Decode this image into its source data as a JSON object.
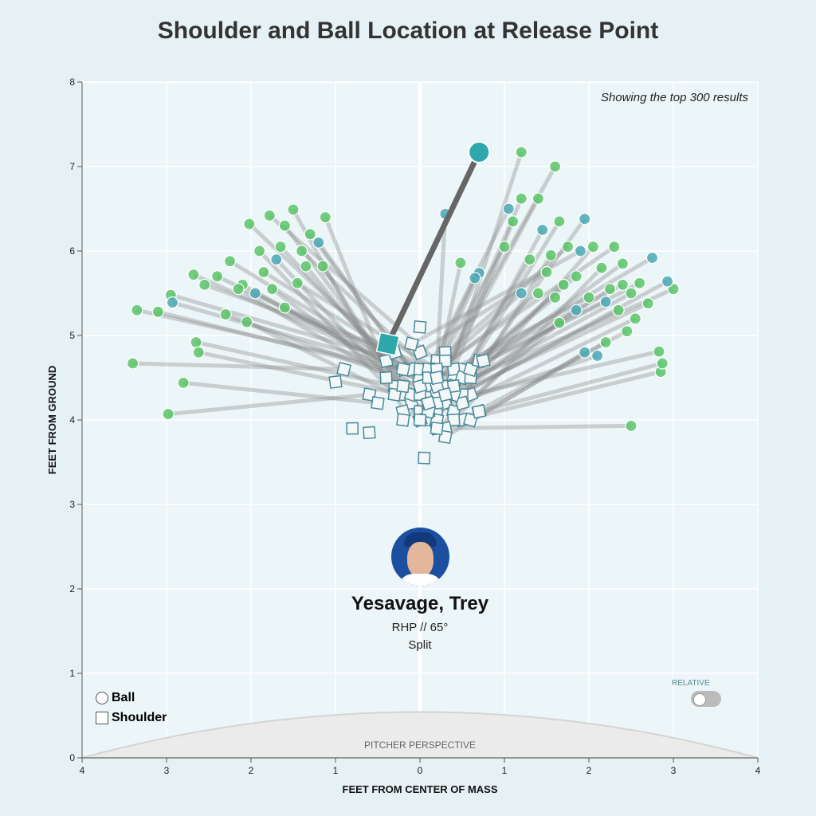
{
  "title": "Shoulder and Ball Location at Release Point",
  "note": "Showing the top 300 results",
  "player": {
    "name": "Yesavage, Trey",
    "info": "RHP // 65°",
    "pitch": "Split"
  },
  "legend": {
    "ball": "Ball",
    "shoulder": "Shoulder"
  },
  "toggle": {
    "label": "RELATIVE",
    "on": false
  },
  "perspective_label": "PITCHER PERSPECTIVE",
  "colors": {
    "ball_green": "#5cc46a",
    "ball_teal": "#4aa8b4",
    "highlight": "#2fa8ab",
    "shoulder_stroke": "#4a8a98",
    "line": "#888888"
  },
  "chart_data": {
    "type": "scatter",
    "xlabel": "FEET FROM CENTER OF MASS",
    "ylabel": "FEET FROM GROUND",
    "xlim": [
      -4,
      4
    ],
    "ylim": [
      0,
      8
    ],
    "xticks": [
      -4,
      -3,
      -2,
      -1,
      0,
      1,
      2,
      3,
      4
    ],
    "xticklabels": [
      "4",
      "3",
      "2",
      "1",
      "0",
      "1",
      "2",
      "3",
      "4"
    ],
    "yticks": [
      0,
      1,
      2,
      3,
      4,
      5,
      6,
      7,
      8
    ],
    "grid": true,
    "highlight": {
      "ball": [
        0.7,
        7.17
      ],
      "shoulder": [
        -0.38,
        4.9
      ]
    },
    "pairs_fields": [
      "ball_x",
      "ball_y",
      "shoulder_x",
      "shoulder_y",
      "group"
    ],
    "pairs": [
      [
        -3.35,
        5.3,
        -0.2,
        4.6,
        "g"
      ],
      [
        -3.1,
        5.28,
        0.0,
        4.5,
        "g"
      ],
      [
        -3.4,
        4.67,
        -0.9,
        4.6,
        "g"
      ],
      [
        -2.98,
        4.07,
        -0.6,
        4.3,
        "g"
      ],
      [
        -2.8,
        4.44,
        -0.5,
        4.2,
        "g"
      ],
      [
        -2.65,
        4.92,
        -0.3,
        4.4,
        "g"
      ],
      [
        -2.62,
        4.8,
        -0.2,
        4.3,
        "g"
      ],
      [
        -2.95,
        5.48,
        0.1,
        4.6,
        "g"
      ],
      [
        -2.93,
        5.39,
        0.2,
        4.5,
        "t"
      ],
      [
        -2.3,
        5.25,
        0.0,
        4.4,
        "g"
      ],
      [
        -2.05,
        5.16,
        -0.1,
        4.2,
        "g"
      ],
      [
        -2.68,
        5.72,
        -0.4,
        4.7,
        "g"
      ],
      [
        -2.55,
        5.6,
        -0.3,
        4.8,
        "g"
      ],
      [
        -2.4,
        5.7,
        -0.1,
        4.6,
        "g"
      ],
      [
        -2.25,
        5.88,
        0.0,
        4.5,
        "g"
      ],
      [
        -2.1,
        5.6,
        0.1,
        4.4,
        "g"
      ],
      [
        -2.02,
        6.32,
        -0.2,
        4.6,
        "g"
      ],
      [
        -1.9,
        6.0,
        -0.3,
        4.3,
        "g"
      ],
      [
        -1.78,
        6.42,
        0.2,
        4.7,
        "g"
      ],
      [
        -1.7,
        5.9,
        0.0,
        4.1,
        "t"
      ],
      [
        -1.6,
        6.3,
        0.1,
        4.0,
        "g"
      ],
      [
        -1.5,
        6.49,
        -0.4,
        4.5,
        "g"
      ],
      [
        -1.4,
        6.0,
        0.3,
        4.4,
        "g"
      ],
      [
        -1.3,
        6.2,
        0.2,
        4.2,
        "g"
      ],
      [
        -1.2,
        6.1,
        0.1,
        4.3,
        "t"
      ],
      [
        -1.12,
        6.4,
        -0.2,
        4.1,
        "g"
      ],
      [
        -1.15,
        5.82,
        0.0,
        4.0,
        "g"
      ],
      [
        -1.35,
        5.82,
        -0.1,
        4.3,
        "g"
      ],
      [
        -1.6,
        5.33,
        0.4,
        4.5,
        "g"
      ],
      [
        -1.75,
        5.55,
        0.2,
        4.1,
        "g"
      ],
      [
        -1.95,
        5.5,
        0.3,
        4.3,
        "t"
      ],
      [
        -2.15,
        5.55,
        -0.2,
        4.4,
        "g"
      ],
      [
        -1.85,
        5.75,
        0.0,
        4.6,
        "g"
      ],
      [
        -1.65,
        6.05,
        0.1,
        4.2,
        "g"
      ],
      [
        -1.45,
        5.62,
        0.2,
        4.6,
        "g"
      ],
      [
        1.2,
        7.17,
        0.3,
        4.4,
        "g"
      ],
      [
        1.6,
        7.0,
        0.2,
        4.5,
        "g"
      ],
      [
        2.5,
        3.93,
        0.2,
        3.9,
        "g"
      ],
      [
        2.85,
        4.57,
        0.5,
        4.0,
        "g"
      ],
      [
        2.87,
        4.67,
        0.7,
        4.1,
        "g"
      ],
      [
        2.83,
        4.81,
        0.6,
        4.3,
        "g"
      ],
      [
        3.0,
        5.55,
        0.4,
        4.4,
        "g"
      ],
      [
        2.93,
        5.64,
        0.3,
        4.2,
        "t"
      ],
      [
        2.75,
        5.92,
        0.5,
        4.6,
        "t"
      ],
      [
        0.3,
        6.44,
        0.2,
        4.6,
        "t"
      ],
      [
        0.7,
        5.74,
        0.1,
        4.4,
        "t"
      ],
      [
        0.65,
        5.68,
        0.0,
        4.3,
        "t"
      ],
      [
        0.48,
        5.86,
        0.2,
        4.5,
        "g"
      ],
      [
        1.0,
        6.05,
        0.3,
        4.8,
        "g"
      ],
      [
        1.1,
        6.35,
        0.4,
        4.6,
        "g"
      ],
      [
        1.2,
        6.62,
        0.2,
        4.3,
        "g"
      ],
      [
        1.4,
        6.62,
        0.1,
        4.2,
        "g"
      ],
      [
        1.05,
        6.5,
        0.0,
        4.4,
        "t"
      ],
      [
        1.3,
        5.9,
        0.3,
        4.2,
        "g"
      ],
      [
        1.45,
        6.25,
        0.5,
        4.5,
        "t"
      ],
      [
        1.55,
        5.95,
        0.4,
        4.1,
        "g"
      ],
      [
        1.65,
        6.35,
        0.2,
        4.0,
        "g"
      ],
      [
        1.75,
        6.05,
        0.1,
        4.6,
        "g"
      ],
      [
        1.85,
        5.7,
        0.3,
        4.4,
        "g"
      ],
      [
        1.95,
        6.38,
        0.6,
        4.5,
        "t"
      ],
      [
        2.05,
        6.05,
        0.5,
        4.3,
        "g"
      ],
      [
        2.15,
        5.8,
        0.4,
        4.0,
        "g"
      ],
      [
        2.25,
        5.55,
        0.2,
        4.2,
        "g"
      ],
      [
        2.35,
        5.3,
        0.1,
        4.1,
        "g"
      ],
      [
        2.45,
        5.05,
        0.3,
        3.9,
        "g"
      ],
      [
        2.55,
        5.2,
        0.5,
        4.2,
        "g"
      ],
      [
        2.6,
        5.62,
        0.2,
        4.4,
        "g"
      ],
      [
        2.7,
        5.38,
        0.4,
        4.3,
        "g"
      ],
      [
        2.2,
        4.92,
        0.6,
        4.0,
        "g"
      ],
      [
        2.1,
        4.76,
        0.1,
        4.1,
        "t"
      ],
      [
        1.95,
        4.8,
        0.3,
        3.8,
        "t"
      ],
      [
        1.65,
        5.15,
        0.2,
        3.9,
        "g"
      ],
      [
        1.85,
        5.3,
        0.0,
        4.0,
        "t"
      ],
      [
        1.4,
        5.5,
        0.1,
        4.5,
        "g"
      ],
      [
        1.2,
        5.5,
        0.3,
        4.7,
        "t"
      ],
      [
        2.3,
        6.05,
        0.2,
        4.6,
        "g"
      ],
      [
        2.4,
        5.85,
        0.4,
        4.4,
        "g"
      ],
      [
        2.0,
        5.45,
        0.2,
        4.5,
        "g"
      ],
      [
        1.7,
        5.6,
        0.3,
        4.3,
        "g"
      ],
      [
        2.5,
        5.5,
        0.1,
        4.2,
        "g"
      ],
      [
        1.5,
        5.75,
        0.0,
        4.8,
        "g"
      ],
      [
        2.2,
        5.4,
        0.6,
        4.6,
        "t"
      ],
      [
        1.9,
        6.0,
        -0.1,
        4.9,
        "t"
      ],
      [
        2.4,
        5.6,
        0.7,
        4.7,
        "g"
      ],
      [
        1.6,
        5.45,
        -0.2,
        4.0,
        "g"
      ],
      [
        0.0,
        5.1,
        0.0,
        5.1,
        "n"
      ],
      [
        0.05,
        3.55,
        0.05,
        3.55,
        "n"
      ],
      [
        -0.8,
        3.9,
        -0.8,
        3.9,
        "n"
      ],
      [
        -0.6,
        3.85,
        -0.6,
        3.85,
        "n"
      ],
      [
        -1.0,
        4.45,
        -1.0,
        4.45,
        "n"
      ],
      [
        0.7,
        4.1,
        0.7,
        4.1,
        "n"
      ],
      [
        0.75,
        4.7,
        0.75,
        4.7,
        "n"
      ]
    ]
  }
}
